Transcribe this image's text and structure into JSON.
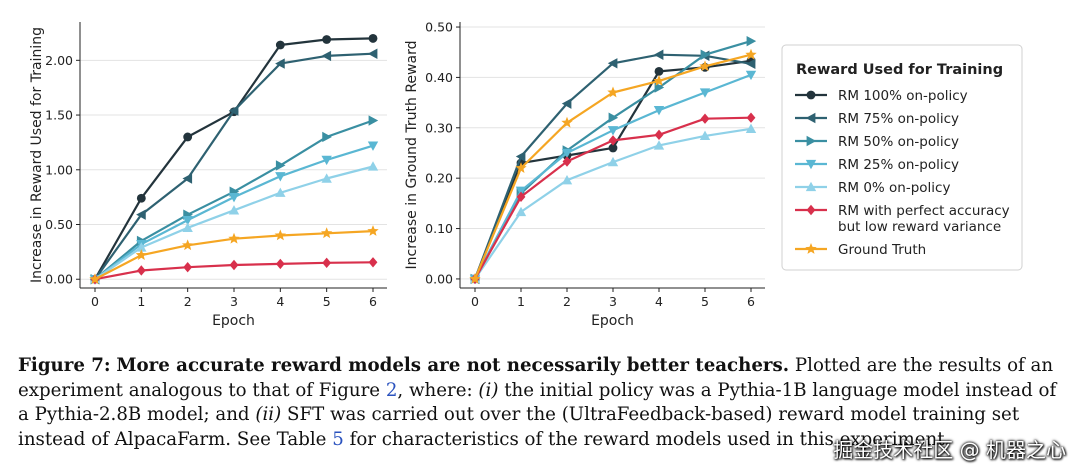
{
  "chart_data": [
    {
      "type": "line",
      "xlabel": "Epoch",
      "ylabel": "Increase in Reward Used for Training",
      "x": [
        0,
        1,
        2,
        3,
        4,
        5,
        6
      ],
      "xticks": [
        "0",
        "1",
        "2",
        "3",
        "4",
        "5",
        "6"
      ],
      "ylim": [
        -0.08,
        2.35
      ],
      "yticks": [
        0.0,
        0.5,
        1.0,
        1.5,
        2.0
      ],
      "ytick_labels": [
        "0.00",
        "0.50",
        "1.00",
        "1.50",
        "2.00"
      ],
      "grid": "horizontal",
      "series": [
        {
          "name": "RM 100% on-policy",
          "values": [
            0.0,
            0.74,
            1.3,
            1.53,
            2.14,
            2.19,
            2.2
          ]
        },
        {
          "name": "RM 75% on-policy",
          "values": [
            0.0,
            0.59,
            0.92,
            1.54,
            1.97,
            2.04,
            2.06
          ]
        },
        {
          "name": "RM 50% on-policy",
          "values": [
            0.0,
            0.35,
            0.59,
            0.8,
            1.04,
            1.3,
            1.45
          ]
        },
        {
          "name": "RM 25% on-policy",
          "values": [
            0.0,
            0.32,
            0.54,
            0.75,
            0.94,
            1.09,
            1.22
          ]
        },
        {
          "name": "RM 0% on-policy",
          "values": [
            0.0,
            0.29,
            0.47,
            0.63,
            0.79,
            0.92,
            1.03
          ]
        },
        {
          "name": "RM with perfect accuracy but low reward variance",
          "values": [
            0.0,
            0.08,
            0.11,
            0.13,
            0.14,
            0.15,
            0.155
          ]
        },
        {
          "name": "Ground Truth",
          "values": [
            0.0,
            0.22,
            0.31,
            0.37,
            0.4,
            0.42,
            0.44
          ]
        }
      ]
    },
    {
      "type": "line",
      "xlabel": "Epoch",
      "ylabel": "Increase in Ground Truth Reward",
      "x": [
        0,
        1,
        2,
        3,
        4,
        5,
        6
      ],
      "xticks": [
        "0",
        "1",
        "2",
        "3",
        "4",
        "5",
        "6"
      ],
      "ylim": [
        -0.018,
        0.51
      ],
      "yticks": [
        0.0,
        0.1,
        0.2,
        0.3,
        0.4,
        0.5
      ],
      "ytick_labels": [
        "0.00",
        "0.10",
        "0.20",
        "0.30",
        "0.40",
        "0.50"
      ],
      "grid": "horizontal",
      "series": [
        {
          "name": "RM 100% on-policy",
          "values": [
            0.0,
            0.23,
            0.245,
            0.26,
            0.412,
            0.42,
            0.433
          ]
        },
        {
          "name": "RM 75% on-policy",
          "values": [
            0.0,
            0.243,
            0.348,
            0.428,
            0.445,
            0.443,
            0.427
          ]
        },
        {
          "name": "RM 50% on-policy",
          "values": [
            0.0,
            0.17,
            0.255,
            0.32,
            0.38,
            0.445,
            0.472
          ]
        },
        {
          "name": "RM 25% on-policy",
          "values": [
            0.0,
            0.175,
            0.25,
            0.295,
            0.335,
            0.37,
            0.405
          ]
        },
        {
          "name": "RM 0% on-policy",
          "values": [
            0.0,
            0.133,
            0.196,
            0.232,
            0.265,
            0.284,
            0.298
          ]
        },
        {
          "name": "RM with perfect accuracy but low reward variance",
          "values": [
            0.0,
            0.163,
            0.233,
            0.275,
            0.286,
            0.318,
            0.32
          ]
        },
        {
          "name": "Ground Truth",
          "values": [
            0.0,
            0.22,
            0.31,
            0.37,
            0.393,
            0.422,
            0.445
          ]
        }
      ]
    }
  ],
  "legend": {
    "title": "Reward Used for Training",
    "placement": "right",
    "entries": [
      {
        "lines": [
          "RM 100% on-policy"
        ],
        "color": "#23343c",
        "marker": "circle"
      },
      {
        "lines": [
          "RM 75% on-policy"
        ],
        "color": "#2e6171",
        "marker": "triangle-left"
      },
      {
        "lines": [
          "RM 50% on-policy"
        ],
        "color": "#3a8fa2",
        "marker": "triangle-right"
      },
      {
        "lines": [
          "RM 25% on-policy"
        ],
        "color": "#5ab7d3",
        "marker": "triangle-down"
      },
      {
        "lines": [
          "RM 0% on-policy"
        ],
        "color": "#8fd1e8",
        "marker": "triangle-up"
      },
      {
        "lines": [
          "RM with perfect accuracy",
          "but low reward variance"
        ],
        "color": "#d8304c",
        "marker": "diamond"
      },
      {
        "lines": [
          "Ground Truth"
        ],
        "color": "#f5a623",
        "marker": "star"
      }
    ]
  },
  "caption": {
    "label": "Figure 7:",
    "bold": "More accurate reward models are not necessarily better teachers.",
    "part1": "Plotted are the results of an experiment analogous to that of Figure",
    "fig_ref": "2",
    "part2": ", where:",
    "i1": "(i)",
    "part3": "the initial policy was a Pythia-1B language model instead of a Pythia-2.8B model; and",
    "i2": "(ii)",
    "part4": "SFT was carried out over the (UltraFeedback-based) reward model training set instead of AlpacaFarm. See Table",
    "table_ref": "5",
    "part5": "for characteristics of the reward models used in this experiment."
  },
  "watermark": "掘金技术社区 @ 机器之心"
}
